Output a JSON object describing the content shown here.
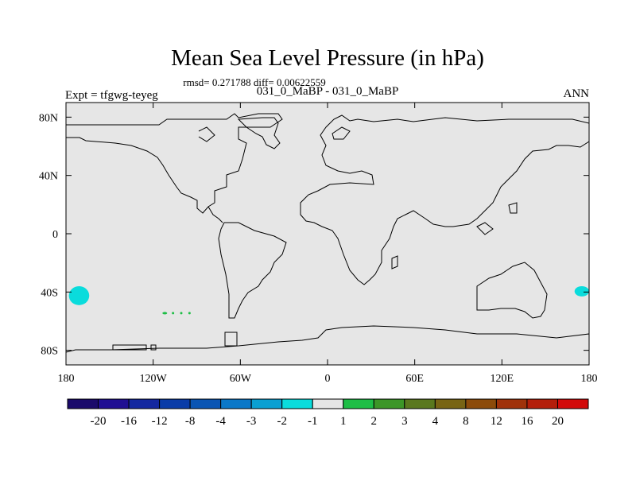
{
  "chart_data": {
    "type": "heatmap",
    "title": "Mean Sea Level Pressure (in hPa)",
    "stats_label": "rmsd= 0.271788 diff= 0.00622559",
    "comparison_label": "031_0_MaBP - 031_0_MaBP",
    "left_label": "Expt = tfgwg-teyeg",
    "right_label": "ANN",
    "x_axis": {
      "range": [
        -180,
        180
      ],
      "ticks": [
        {
          "value": -180,
          "label": "180"
        },
        {
          "value": -120,
          "label": "120W"
        },
        {
          "value": -60,
          "label": "60W"
        },
        {
          "value": 0,
          "label": "0"
        },
        {
          "value": 60,
          "label": "60E"
        },
        {
          "value": 120,
          "label": "120E"
        },
        {
          "value": 180,
          "label": "180"
        }
      ]
    },
    "y_axis": {
      "range": [
        -90,
        90
      ],
      "ticks": [
        {
          "value": 80,
          "label": "80N"
        },
        {
          "value": 40,
          "label": "40N"
        },
        {
          "value": 0,
          "label": "0"
        },
        {
          "value": -40,
          "label": "40S"
        },
        {
          "value": -80,
          "label": "80S"
        }
      ]
    },
    "colorbar": {
      "colors": [
        "#1a0a6b",
        "#200f93",
        "#1428a0",
        "#0a3ca8",
        "#0a55b4",
        "#0a78c8",
        "#0aa0d2",
        "#0adcdc",
        "#e6e6e6",
        "#1ebe46",
        "#3c9628",
        "#5a781e",
        "#786414",
        "#8c4b0a",
        "#a0320a",
        "#b41e0a",
        "#d20a0a"
      ],
      "labels": [
        "-20",
        "-16",
        "-12",
        "-8",
        "-4",
        "-3",
        "-2",
        "-1",
        "1",
        "2",
        "3",
        "4",
        "8",
        "12",
        "16",
        "20"
      ]
    },
    "anomaly_regions": [
      {
        "name": "south-pacific-anomaly",
        "bin": "-2 to -1",
        "color": "#0adcdc",
        "lon": [
          -178,
          -164
        ],
        "lat": [
          -36,
          -49
        ]
      },
      {
        "name": "east-edge-anomaly",
        "bin": "-2 to -1",
        "color": "#0adcdc",
        "lon": [
          170,
          180
        ],
        "lat": [
          -36,
          -43
        ]
      },
      {
        "name": "southern-ocean-dots",
        "bin": "1 to 2",
        "color": "#1ebe46",
        "lon": [
          -112,
          -95
        ],
        "lat": [
          -54,
          -55
        ]
      }
    ]
  }
}
